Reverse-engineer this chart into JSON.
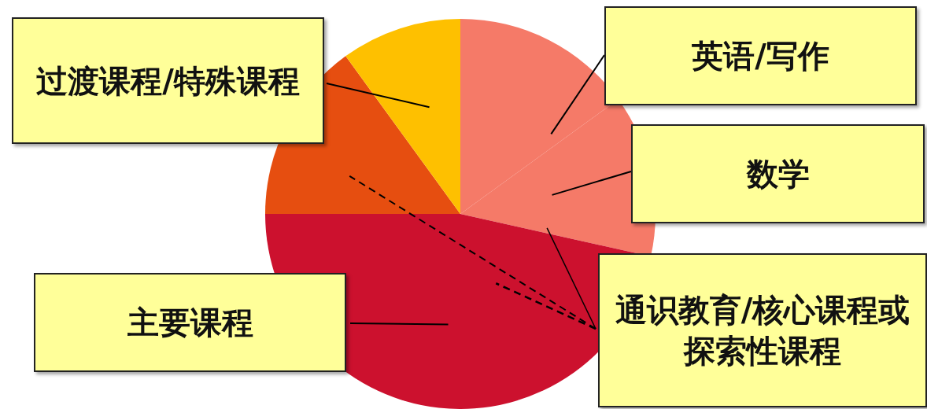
{
  "chart_data": {
    "type": "pie",
    "categories": [
      "英语/写作",
      "数学",
      "主要课程",
      "通识教育/核心课程或探索性课程",
      "过渡课程/特殊课程"
    ],
    "values": [
      15,
      13.5,
      46.5,
      15,
      10
    ],
    "colors": [
      "#f57a68",
      "#f57a68",
      "#cc112e",
      "#e64e10",
      "#fec000"
    ]
  }
}
